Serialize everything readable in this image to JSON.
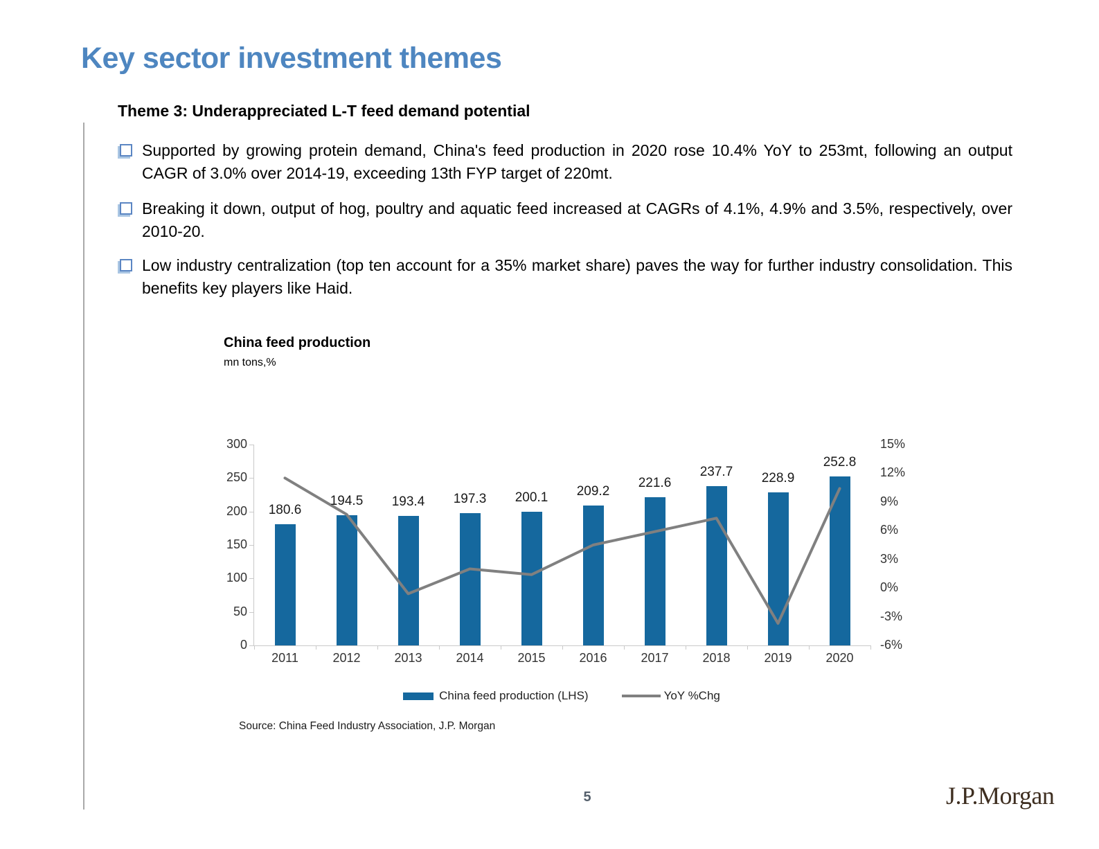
{
  "page": {
    "title": "Key sector investment themes",
    "theme_heading": "Theme 3: Underappreciated L-T feed demand potential",
    "bullets": [
      {
        "text": "Supported by growing protein demand, China's feed production in 2020 rose 10.4% YoY to 253mt, following an output CAGR of 3.0% over 2014-19, exceeding 13th FYP target of 220mt."
      },
      {
        "text": "Breaking it down, output of hog, poultry and aquatic feed increased at CAGRs of 4.1%, 4.9% and 3.5%, respectively, over 2010-20."
      },
      {
        "text": "Low industry centralization (top ten account for a 35% market share) paves the way for further industry consolidation. This benefits key players like Haid."
      }
    ],
    "source": "Source: China Feed Industry Association, J.P. Morgan",
    "page_number": "5",
    "logo_text": "J.P.Morgan"
  },
  "colors": {
    "title_blue": "#4e86c0",
    "bar_blue": "#15689E",
    "line_gray": "#808080",
    "bullet_square_blue": "#5b86c3",
    "logo_brown": "#3e2e20"
  },
  "chart_data": {
    "type": "bar",
    "title": "China feed production",
    "unit_label": "mn tons,%",
    "categories": [
      "2011",
      "2012",
      "2013",
      "2014",
      "2015",
      "2016",
      "2017",
      "2018",
      "2019",
      "2020"
    ],
    "series": [
      {
        "name": "China feed production (LHS)",
        "type": "bar",
        "axis": "left",
        "color": "#15689E",
        "values": [
          180.6,
          194.5,
          193.4,
          197.3,
          200.1,
          209.2,
          221.6,
          237.7,
          228.9,
          252.8
        ]
      },
      {
        "name": "YoY %Chg",
        "type": "line",
        "axis": "right",
        "color": "#808080",
        "values_pct_estimated": [
          11.5,
          7.7,
          -0.6,
          2.0,
          1.4,
          4.5,
          5.9,
          7.3,
          -3.7,
          10.4
        ]
      }
    ],
    "left_axis": {
      "min": 0,
      "max": 300,
      "step": 50,
      "ticks": [
        "300",
        "250",
        "200",
        "150",
        "100",
        "50",
        "0"
      ]
    },
    "right_axis": {
      "min": -6,
      "max": 15,
      "step": 3,
      "ticks": [
        "15%",
        "12%",
        "9%",
        "6%",
        "3%",
        "0%",
        "-3%",
        "-6%"
      ]
    },
    "grid": "off",
    "legend_position": "bottom"
  }
}
